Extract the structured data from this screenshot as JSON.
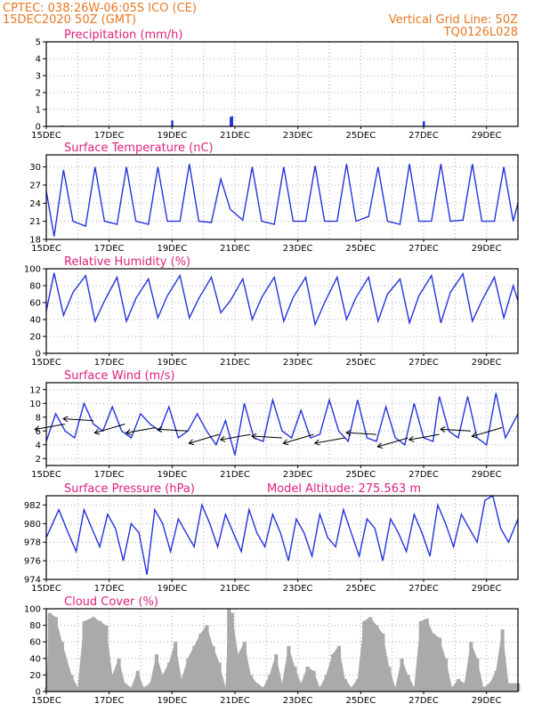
{
  "header": {
    "line1": "CPTEC:   038:26W-06:05S   ICO (CE)",
    "line2": "15DEC2020 50Z (GMT)",
    "grid_label": "Vertical Grid Line: 50Z",
    "code": "TQ0126L028"
  },
  "colors": {
    "header": "#e87722",
    "title": "#e0207a",
    "line": "#2233dd",
    "bars": "#aaaaaa"
  },
  "x_ticks": [
    "15DEC",
    "17DEC",
    "19DEC",
    "21DEC",
    "23DEC",
    "25DEC",
    "27DEC",
    "29DEC"
  ],
  "chart_data": [
    {
      "id": "precip",
      "type": "bar",
      "title": "Precipitation (mm/h)",
      "x": [
        0.5,
        4.0,
        5.86,
        5.9,
        12.0
      ],
      "values": [
        0.05,
        0.35,
        0.55,
        0.6,
        0.3
      ],
      "ylim": [
        0,
        5
      ],
      "yticks": [
        0,
        1,
        2,
        3,
        4,
        5
      ],
      "grid": true
    },
    {
      "id": "temp",
      "type": "line",
      "title": "Surface Temperature (nC)",
      "x": [
        0,
        0.25,
        0.55,
        0.85,
        1.25,
        1.55,
        1.85,
        2.25,
        2.55,
        2.85,
        3.25,
        3.55,
        3.85,
        4.25,
        4.55,
        4.85,
        5.25,
        5.55,
        5.85,
        6.25,
        6.55,
        6.85,
        7.25,
        7.55,
        7.85,
        8.25,
        8.55,
        8.85,
        9.25,
        9.55,
        9.85,
        10.25,
        10.55,
        10.85,
        11.25,
        11.55,
        11.85,
        12.25,
        12.55,
        12.85,
        13.25,
        13.55,
        13.85,
        14.25,
        14.55,
        14.85,
        15.0
      ],
      "values": [
        26,
        18.5,
        29.5,
        21,
        20.2,
        30,
        21,
        20.5,
        30,
        21,
        20.5,
        30,
        21,
        21,
        30.5,
        21,
        20.8,
        28,
        23,
        21.2,
        30,
        21,
        20.5,
        30,
        21,
        21,
        30.2,
        21,
        21,
        30.5,
        21,
        21.8,
        30,
        21,
        20.5,
        30.5,
        21,
        21,
        30.5,
        21,
        21.2,
        30.5,
        21,
        21,
        30,
        21,
        24
      ],
      "ylim": [
        18,
        32
      ],
      "yticks": [
        18,
        21,
        24,
        27,
        30
      ],
      "grid": true
    },
    {
      "id": "rh",
      "type": "line",
      "title": "Relative Humidity (%)",
      "x": [
        0,
        0.25,
        0.55,
        0.85,
        1.25,
        1.55,
        1.85,
        2.25,
        2.55,
        2.85,
        3.25,
        3.55,
        3.85,
        4.25,
        4.55,
        4.85,
        5.25,
        5.55,
        5.85,
        6.25,
        6.55,
        6.85,
        7.25,
        7.55,
        7.85,
        8.25,
        8.55,
        8.85,
        9.25,
        9.55,
        9.85,
        10.25,
        10.55,
        10.85,
        11.25,
        11.55,
        11.85,
        12.25,
        12.55,
        12.85,
        13.25,
        13.55,
        13.85,
        14.25,
        14.55,
        14.85,
        15.0
      ],
      "values": [
        50,
        95,
        45,
        72,
        92,
        38,
        62,
        90,
        38,
        65,
        88,
        42,
        68,
        92,
        42,
        65,
        90,
        48,
        62,
        88,
        40,
        66,
        90,
        38,
        66,
        90,
        34,
        60,
        90,
        40,
        66,
        90,
        38,
        70,
        88,
        36,
        68,
        92,
        36,
        72,
        94,
        38,
        62,
        90,
        42,
        80,
        62
      ],
      "ylim": [
        0,
        100
      ],
      "yticks": [
        0,
        20,
        40,
        60,
        80,
        100
      ],
      "grid": true
    },
    {
      "id": "wind",
      "type": "line",
      "title": "Surface Wind (m/s)",
      "x": [
        0,
        0.3,
        0.6,
        0.9,
        1.2,
        1.5,
        1.8,
        2.1,
        2.4,
        2.7,
        3.0,
        3.3,
        3.6,
        3.9,
        4.2,
        4.5,
        4.8,
        5.1,
        5.4,
        5.7,
        6.0,
        6.3,
        6.6,
        6.9,
        7.2,
        7.5,
        7.8,
        8.1,
        8.4,
        8.7,
        9.0,
        9.3,
        9.6,
        9.9,
        10.2,
        10.5,
        10.8,
        11.1,
        11.4,
        11.7,
        12.0,
        12.3,
        12.5,
        12.8,
        13.1,
        13.4,
        13.7,
        14.0,
        14.3,
        14.6,
        15.0
      ],
      "values": [
        4.5,
        8.5,
        6.0,
        5.0,
        10.0,
        7.0,
        6.0,
        9.5,
        6.0,
        5.0,
        8.5,
        7.0,
        6.0,
        9.5,
        5.0,
        6.0,
        8.5,
        6.0,
        4.0,
        7.5,
        2.5,
        10.0,
        5.0,
        4.5,
        10.5,
        6.0,
        5.0,
        9.0,
        5.0,
        5.5,
        10.5,
        6.0,
        4.5,
        10.5,
        5.0,
        4.5,
        9.5,
        5.0,
        4.0,
        10.0,
        5.0,
        4.5,
        11.0,
        6.0,
        5.0,
        11.0,
        5.0,
        4.0,
        11.5,
        5.0,
        8.5
      ],
      "ylim": [
        1,
        13
      ],
      "yticks": [
        2,
        4,
        6,
        8,
        10,
        12
      ],
      "grid": true,
      "vectors": [
        {
          "x": 0.6,
          "v": 7.0
        },
        {
          "x": 1.5,
          "v": 7.5
        },
        {
          "x": 2.5,
          "v": 7.0
        },
        {
          "x": 3.5,
          "v": 6.5
        },
        {
          "x": 4.5,
          "v": 6.0
        },
        {
          "x": 5.5,
          "v": 5.5
        },
        {
          "x": 6.5,
          "v": 5.5
        },
        {
          "x": 7.5,
          "v": 5.0
        },
        {
          "x": 8.5,
          "v": 5.5
        },
        {
          "x": 9.5,
          "v": 5.0
        },
        {
          "x": 10.5,
          "v": 5.5
        },
        {
          "x": 11.5,
          "v": 5.0
        },
        {
          "x": 12.5,
          "v": 5.5
        },
        {
          "x": 13.5,
          "v": 6.0
        },
        {
          "x": 14.5,
          "v": 6.5
        }
      ]
    },
    {
      "id": "pres",
      "type": "line",
      "title": "Surface Pressure (hPa)",
      "model_altitude": "Model Altitude: 275.563  m",
      "x": [
        0,
        0.2,
        0.4,
        0.7,
        0.95,
        1.2,
        1.45,
        1.7,
        1.95,
        2.2,
        2.45,
        2.7,
        2.95,
        3.2,
        3.45,
        3.7,
        3.95,
        4.2,
        4.45,
        4.7,
        4.95,
        5.2,
        5.45,
        5.7,
        5.95,
        6.2,
        6.45,
        6.7,
        6.95,
        7.2,
        7.45,
        7.7,
        7.95,
        8.2,
        8.45,
        8.7,
        8.95,
        9.2,
        9.45,
        9.7,
        9.95,
        10.2,
        10.45,
        10.7,
        10.95,
        11.2,
        11.45,
        11.7,
        11.95,
        12.2,
        12.45,
        12.7,
        12.95,
        13.2,
        13.45,
        13.7,
        13.95,
        14.2,
        14.45,
        14.7,
        15.0
      ],
      "values": [
        978.5,
        980.0,
        981.5,
        979.0,
        977.0,
        981.5,
        979.5,
        977.5,
        981.0,
        979.5,
        976.0,
        980.0,
        979.0,
        974.5,
        981.5,
        980.0,
        977.0,
        980.5,
        979.0,
        977.5,
        982.0,
        980.0,
        977.5,
        981.0,
        979.0,
        977.0,
        981.5,
        979.0,
        977.5,
        981.0,
        979.0,
        976.0,
        980.5,
        979.0,
        976.5,
        981.0,
        978.5,
        977.5,
        981.5,
        979.0,
        976.5,
        980.5,
        979.5,
        976.0,
        980.5,
        979.0,
        977.0,
        981.0,
        979.0,
        976.5,
        982.0,
        980.0,
        977.5,
        981.0,
        979.5,
        978.0,
        982.5,
        983.0,
        979.5,
        978.0,
        980.5
      ],
      "ylim": [
        974,
        983
      ],
      "yticks": [
        974,
        976,
        978,
        980,
        982
      ],
      "grid": true
    },
    {
      "id": "cloud",
      "type": "area",
      "title": "Cloud Cover (%)",
      "x": [
        0,
        0.1,
        0.3,
        0.5,
        0.8,
        1.0,
        1.2,
        1.5,
        1.7,
        1.9,
        2.1,
        2.3,
        2.5,
        2.7,
        2.9,
        3.1,
        3.3,
        3.5,
        3.7,
        3.9,
        4.1,
        4.3,
        4.5,
        4.7,
        4.9,
        5.1,
        5.3,
        5.5,
        5.7,
        5.8,
        5.9,
        6.1,
        6.3,
        6.5,
        6.7,
        6.9,
        7.1,
        7.3,
        7.5,
        7.7,
        7.9,
        8.1,
        8.3,
        8.5,
        8.7,
        8.9,
        9.1,
        9.3,
        9.5,
        9.7,
        9.9,
        10.1,
        10.3,
        10.5,
        10.7,
        10.9,
        11.1,
        11.3,
        11.5,
        11.7,
        11.9,
        12.1,
        12.3,
        12.5,
        12.7,
        12.9,
        13.1,
        13.3,
        13.5,
        13.7,
        13.9,
        14.1,
        14.3,
        14.5,
        14.7,
        14.9,
        15.0
      ],
      "values": [
        5,
        95,
        90,
        60,
        20,
        5,
        85,
        90,
        85,
        80,
        20,
        40,
        10,
        5,
        25,
        5,
        10,
        45,
        20,
        35,
        60,
        15,
        40,
        55,
        70,
        80,
        55,
        35,
        5,
        100,
        95,
        45,
        60,
        20,
        10,
        5,
        20,
        45,
        10,
        55,
        30,
        10,
        30,
        25,
        5,
        20,
        45,
        55,
        15,
        5,
        15,
        85,
        90,
        80,
        70,
        30,
        5,
        40,
        20,
        5,
        85,
        88,
        70,
        65,
        40,
        5,
        15,
        10,
        60,
        40,
        5,
        10,
        25,
        75,
        10,
        10,
        10
      ],
      "ylim": [
        0,
        100
      ],
      "yticks": [
        0,
        20,
        40,
        60,
        80,
        100
      ],
      "grid": true
    }
  ]
}
